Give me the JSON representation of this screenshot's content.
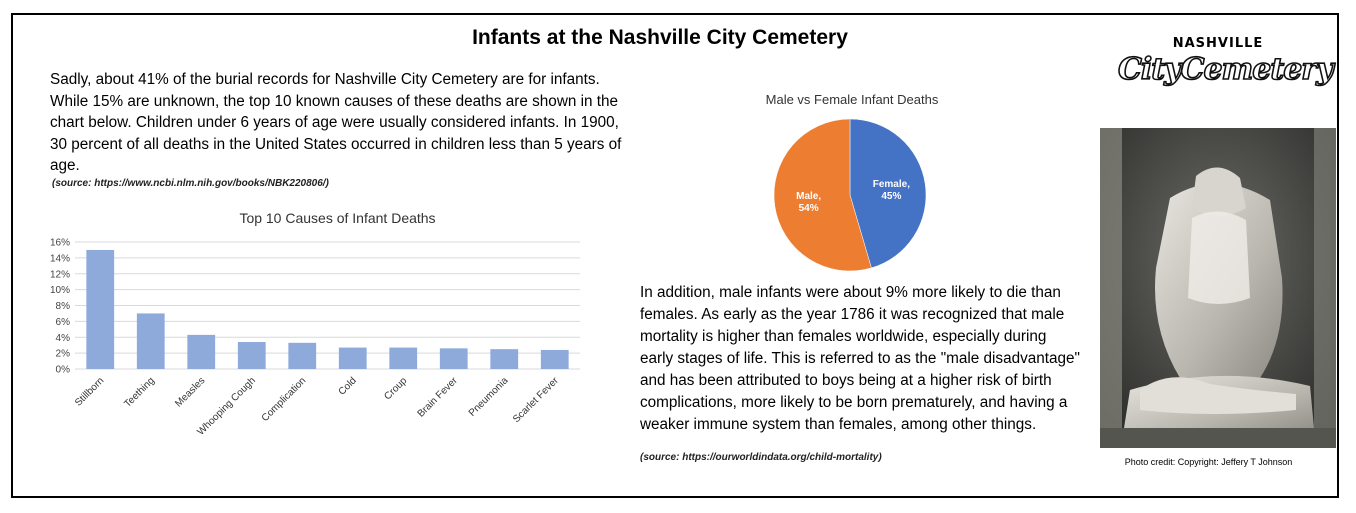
{
  "page": {
    "title": "Infants at the Nashville City Cemetery",
    "intro": "Sadly, about 41% of the burial records for Nashville City Cemetery are for infants. While 15% are unknown, the top 10 known causes of these deaths are shown in the chart below. Children under 6 years of age were usually considered infants. In 1900, 30 percent of all deaths in the United States occurred in children less than 5 years of age.",
    "source1": "(source: https://www.ncbi.nlm.nih.gov/books/NBK220806/)",
    "outro": "In addition, male infants were about 9% more likely to die than females. As early as the year 1786 it was recognized that male mortality is higher than females worldwide, especially during early stages of life. This is referred to as the \"male disadvantage\" and has been attributed to boys being at a higher risk of birth complications, more likely to be born prematurely, and having a weaker immune system than females, among other things.",
    "source2": "(source: https://ourworldindata.org/child-mortality)",
    "logo_top": "NASHVILLE",
    "logo_main": "CityCemetery",
    "photo_credit": "Photo credit: Copyright: Jeffery T Johnson"
  },
  "colors": {
    "bar": "#8eaadb",
    "female": "#4472c4",
    "male": "#ed7d31",
    "grid": "#d9d9d9"
  },
  "chart_data": [
    {
      "type": "bar",
      "title": "Top 10 Causes of Infant Deaths",
      "categories": [
        "Stillborn",
        "Teething",
        "Measles",
        "Whooping Cough",
        "Complication",
        "Cold",
        "Croup",
        "Brain Fever",
        "Pneumonia",
        "Scarlet Fever"
      ],
      "values": [
        15.0,
        7.0,
        4.3,
        3.4,
        3.3,
        2.7,
        2.7,
        2.6,
        2.5,
        2.4
      ],
      "ylim": [
        0,
        16
      ],
      "yticks": [
        "0%",
        "2%",
        "4%",
        "6%",
        "8%",
        "10%",
        "12%",
        "14%",
        "16%"
      ],
      "grid": true,
      "xlabel": "",
      "ylabel": ""
    },
    {
      "type": "pie",
      "title": "Male vs Female Infant Deaths",
      "labels": [
        "Female",
        "Male"
      ],
      "values": [
        45,
        54
      ],
      "data_labels": [
        "Female,\n45%",
        "Male,\n54%"
      ]
    }
  ]
}
